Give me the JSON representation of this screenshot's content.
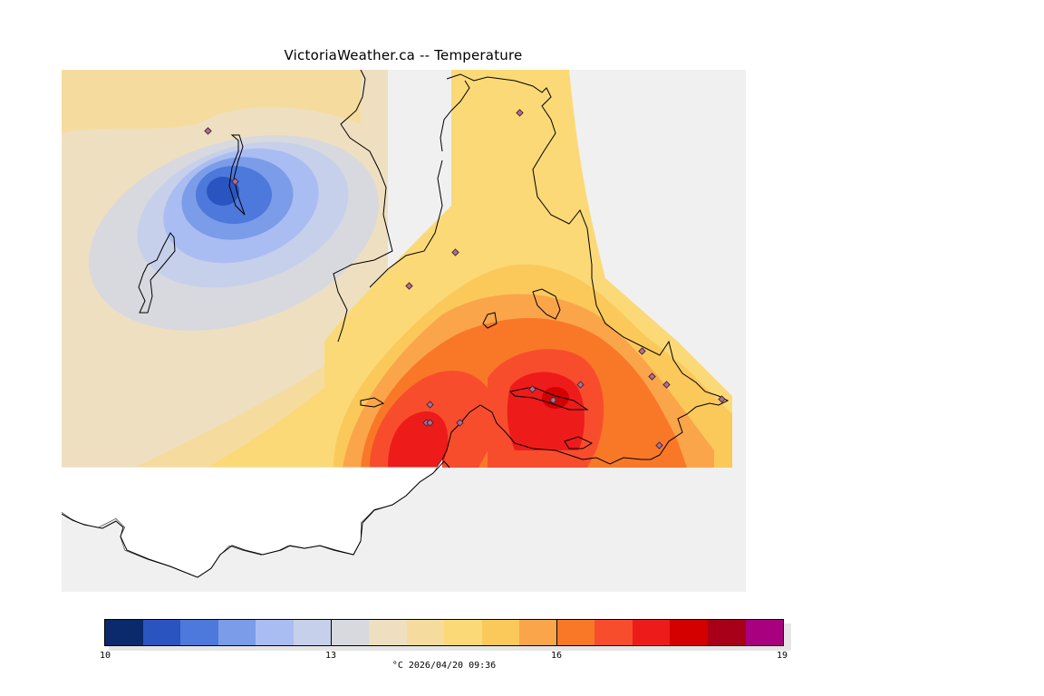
{
  "header": {
    "title": "VictoriaWeather.ca -- Temperature"
  },
  "legend": {
    "units_timestamp": "°C  2026/04/20 09:36",
    "ticks": [
      "10",
      "13",
      "16",
      "19"
    ],
    "colors": [
      "#0b2a6c",
      "#2a55c0",
      "#4d78dc",
      "#7b9ce8",
      "#aabdf2",
      "#c7d0ea",
      "#d7d9de",
      "#eedfc1",
      "#f5dc9e",
      "#fbd977",
      "#fbc95a",
      "#fba54a",
      "#f97828",
      "#f84d2d",
      "#ee1b1b",
      "#d40000",
      "#a80018",
      "#a8007f"
    ]
  },
  "map": {
    "background_color": "#f0f0f0",
    "station_count": 17
  }
}
